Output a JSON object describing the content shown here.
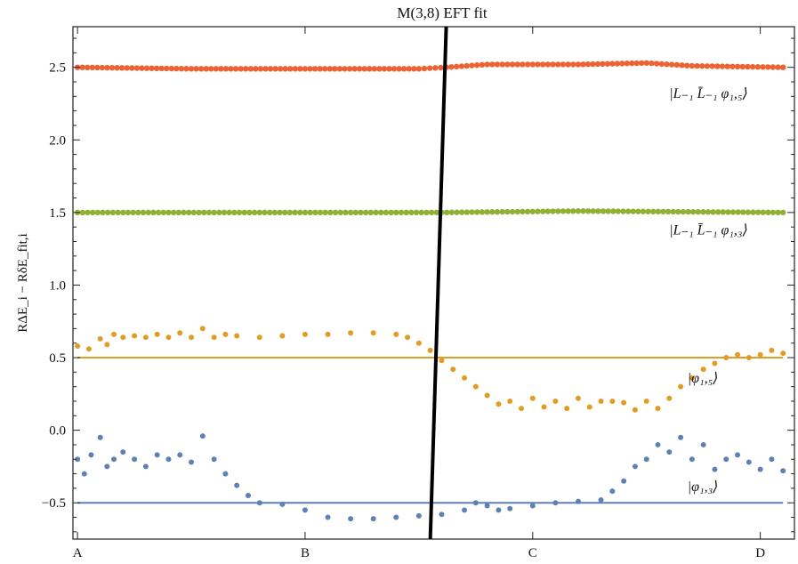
{
  "chart_data": {
    "type": "scatter",
    "title": "M(3,8) EFT fit",
    "ylabel": "RΔE_i − RδE_fit,i",
    "xlabel": "",
    "x_ticks": [
      "A",
      "B",
      "C",
      "D"
    ],
    "xlim": [
      -0.02,
      3.15
    ],
    "ylim": [
      -0.75,
      2.78
    ],
    "y_ticks": [
      -0.5,
      0.0,
      0.5,
      1.0,
      1.5,
      2.0,
      2.5
    ],
    "y_tick_labels": [
      "−0.5",
      "0.0",
      "0.5",
      "1.0",
      "1.5",
      "2.0",
      "2.5"
    ],
    "grid": false,
    "vertical_line": {
      "x_bottom": 1.55,
      "x_top": 1.62,
      "color": "#000000"
    },
    "reference_lines": [
      {
        "y": 0.5,
        "color": "#e19c24"
      },
      {
        "y": -0.5,
        "color": "#5e81b5"
      }
    ],
    "state_labels": [
      {
        "text": "|L₋₁ L̄₋₁ φ₁,₅⟩",
        "x": 2.6,
        "y": 2.29
      },
      {
        "text": "|L₋₁ L̄₋₁ φ₁,₃⟩",
        "x": 2.6,
        "y": 1.35
      },
      {
        "text": "|φ₁,₅⟩",
        "x": 2.68,
        "y": 0.33
      },
      {
        "text": "|φ₁,₃⟩",
        "x": 2.68,
        "y": -0.42
      }
    ],
    "series": [
      {
        "color": "#eb6235",
        "points": [
          [
            0.0,
            2.5
          ],
          [
            0.5,
            2.49
          ],
          [
            1.0,
            2.49
          ],
          [
            1.5,
            2.49
          ],
          [
            1.62,
            2.5
          ],
          [
            1.8,
            2.52
          ],
          [
            2.2,
            2.52
          ],
          [
            2.5,
            2.53
          ],
          [
            2.7,
            2.51
          ],
          [
            3.1,
            2.5
          ]
        ]
      },
      {
        "color": "#8fb032",
        "points": [
          [
            0.0,
            1.5
          ],
          [
            1.0,
            1.5
          ],
          [
            1.6,
            1.5
          ],
          [
            2.2,
            1.51
          ],
          [
            3.1,
            1.5
          ]
        ]
      },
      {
        "color": "#e19c24",
        "points": [
          [
            0.0,
            0.58
          ],
          [
            0.05,
            0.56
          ],
          [
            0.1,
            0.63
          ],
          [
            0.13,
            0.59
          ],
          [
            0.16,
            0.66
          ],
          [
            0.2,
            0.64
          ],
          [
            0.25,
            0.65
          ],
          [
            0.3,
            0.64
          ],
          [
            0.35,
            0.66
          ],
          [
            0.4,
            0.64
          ],
          [
            0.45,
            0.67
          ],
          [
            0.5,
            0.64
          ],
          [
            0.55,
            0.7
          ],
          [
            0.6,
            0.64
          ],
          [
            0.65,
            0.66
          ],
          [
            0.7,
            0.65
          ],
          [
            0.8,
            0.64
          ],
          [
            0.9,
            0.65
          ],
          [
            1.0,
            0.66
          ],
          [
            1.1,
            0.66
          ],
          [
            1.2,
            0.67
          ],
          [
            1.3,
            0.67
          ],
          [
            1.4,
            0.66
          ],
          [
            1.45,
            0.64
          ],
          [
            1.5,
            0.6
          ],
          [
            1.55,
            0.55
          ],
          [
            1.6,
            0.48
          ],
          [
            1.65,
            0.42
          ],
          [
            1.7,
            0.36
          ],
          [
            1.75,
            0.3
          ],
          [
            1.8,
            0.24
          ],
          [
            1.85,
            0.18
          ],
          [
            1.9,
            0.2
          ],
          [
            1.95,
            0.15
          ],
          [
            2.0,
            0.22
          ],
          [
            2.05,
            0.16
          ],
          [
            2.1,
            0.2
          ],
          [
            2.15,
            0.15
          ],
          [
            2.2,
            0.22
          ],
          [
            2.25,
            0.16
          ],
          [
            2.3,
            0.2
          ],
          [
            2.35,
            0.2
          ],
          [
            2.4,
            0.19
          ],
          [
            2.45,
            0.14
          ],
          [
            2.5,
            0.2
          ],
          [
            2.55,
            0.15
          ],
          [
            2.6,
            0.22
          ],
          [
            2.65,
            0.3
          ],
          [
            2.7,
            0.36
          ],
          [
            2.75,
            0.42
          ],
          [
            2.8,
            0.46
          ],
          [
            2.85,
            0.5
          ],
          [
            2.9,
            0.52
          ],
          [
            2.95,
            0.5
          ],
          [
            3.0,
            0.52
          ],
          [
            3.05,
            0.55
          ],
          [
            3.1,
            0.53
          ]
        ]
      },
      {
        "color": "#5e81b5",
        "points": [
          [
            0.0,
            -0.2
          ],
          [
            0.03,
            -0.3
          ],
          [
            0.06,
            -0.17
          ],
          [
            0.1,
            -0.05
          ],
          [
            0.13,
            -0.25
          ],
          [
            0.16,
            -0.2
          ],
          [
            0.2,
            -0.15
          ],
          [
            0.25,
            -0.2
          ],
          [
            0.3,
            -0.25
          ],
          [
            0.35,
            -0.17
          ],
          [
            0.4,
            -0.2
          ],
          [
            0.45,
            -0.17
          ],
          [
            0.5,
            -0.22
          ],
          [
            0.55,
            -0.04
          ],
          [
            0.6,
            -0.2
          ],
          [
            0.65,
            -0.3
          ],
          [
            0.7,
            -0.38
          ],
          [
            0.75,
            -0.45
          ],
          [
            0.8,
            -0.5
          ],
          [
            0.9,
            -0.51
          ],
          [
            1.0,
            -0.55
          ],
          [
            1.1,
            -0.6
          ],
          [
            1.2,
            -0.61
          ],
          [
            1.3,
            -0.61
          ],
          [
            1.4,
            -0.6
          ],
          [
            1.5,
            -0.59
          ],
          [
            1.6,
            -0.58
          ],
          [
            1.7,
            -0.55
          ],
          [
            1.75,
            -0.5
          ],
          [
            1.8,
            -0.52
          ],
          [
            1.85,
            -0.55
          ],
          [
            1.9,
            -0.54
          ],
          [
            2.0,
            -0.52
          ],
          [
            2.1,
            -0.5
          ],
          [
            2.2,
            -0.49
          ],
          [
            2.3,
            -0.48
          ],
          [
            2.35,
            -0.42
          ],
          [
            2.4,
            -0.35
          ],
          [
            2.45,
            -0.25
          ],
          [
            2.5,
            -0.2
          ],
          [
            2.55,
            -0.1
          ],
          [
            2.6,
            -0.15
          ],
          [
            2.65,
            -0.05
          ],
          [
            2.7,
            -0.2
          ],
          [
            2.75,
            -0.1
          ],
          [
            2.8,
            -0.27
          ],
          [
            2.85,
            -0.2
          ],
          [
            2.9,
            -0.17
          ],
          [
            2.95,
            -0.22
          ],
          [
            3.0,
            -0.27
          ],
          [
            3.05,
            -0.2
          ],
          [
            3.1,
            -0.28
          ]
        ]
      }
    ]
  }
}
